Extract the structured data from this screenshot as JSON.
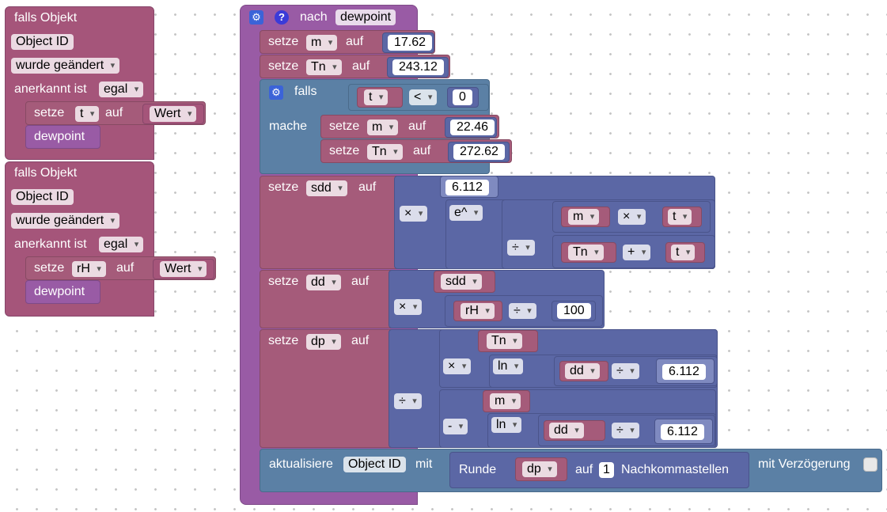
{
  "trigger1": {
    "header": "falls Objekt",
    "object_id": "Object ID",
    "changed": "wurde geändert",
    "ack_label": "anerkannt ist",
    "ack_value": "egal",
    "setze": "setze",
    "var": "t",
    "auf": "auf",
    "value": "Wert",
    "call": "dewpoint"
  },
  "trigger2": {
    "header": "falls Objekt",
    "object_id": "Object ID",
    "changed": "wurde geändert",
    "ack_label": "anerkannt ist",
    "ack_value": "egal",
    "setze": "setze",
    "var": "rH",
    "auf": "auf",
    "value": "Wert",
    "call": "dewpoint"
  },
  "func": {
    "header": "nach",
    "name": "dewpoint",
    "setze": "setze",
    "auf": "auf",
    "m": "m",
    "Tn": "Tn",
    "t": "t",
    "rH": "rH",
    "sdd": "sdd",
    "dd": "dd",
    "dp": "dp",
    "m_val": "17.62",
    "tn_val": "243.12",
    "falls": "falls",
    "mache": "mache",
    "lt": "<",
    "zero": "0",
    "m_val2": "22.46",
    "tn_val2": "272.62",
    "sdd_const": "6.112",
    "times": "×",
    "divide": "÷",
    "plus": "+",
    "minus": "-",
    "exp": "e^",
    "ln": "ln",
    "hundred": "100",
    "c6112a": "6.112",
    "c6112b": "6.112",
    "update": "aktualisiere",
    "update_obj": "Object ID",
    "mit": "mit",
    "round": "Runde",
    "round_auf": "auf",
    "decimals": "1",
    "decimals_label": "Nachkommastellen",
    "delay": "mit Verzögerung"
  },
  "colors": {
    "event": "#a5557a",
    "variable": "#a55b7a",
    "math": "#5b67a5",
    "logic": "#5b80a5",
    "function": "#995ba5"
  }
}
